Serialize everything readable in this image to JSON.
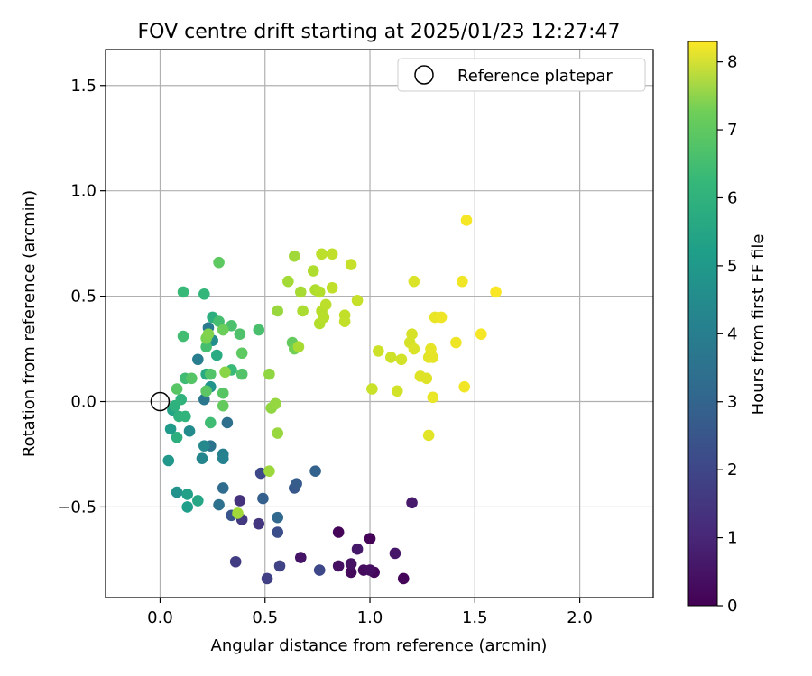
{
  "chart_data": {
    "type": "scatter",
    "title": "FOV centre drift starting at 2025/01/23 12:27:47",
    "xlabel": "Angular distance from reference (arcmin)",
    "ylabel": "Rotation from reference (arcmin)",
    "xlim": [
      -0.26,
      2.35
    ],
    "ylim": [
      -0.93,
      1.67
    ],
    "xticks": [
      0.0,
      0.5,
      1.0,
      1.5,
      2.0
    ],
    "xtick_labels": [
      "0.0",
      "0.5",
      "1.0",
      "1.5",
      "2.0"
    ],
    "yticks": [
      -0.5,
      0.0,
      0.5,
      1.0,
      1.5
    ],
    "ytick_labels": [
      "−0.5",
      "0.0",
      "0.5",
      "1.0",
      "1.5"
    ],
    "grid": true,
    "legend": {
      "position": "top-right",
      "entries": [
        "Reference platepar"
      ]
    },
    "reference_point": {
      "x": 0.0,
      "y": 0.0
    },
    "colorbar": {
      "label": "Hours from first FF file",
      "range": [
        0,
        8.3
      ],
      "ticks": [
        0,
        1,
        2,
        3,
        4,
        5,
        6,
        7,
        8
      ],
      "tick_labels": [
        "0",
        "1",
        "2",
        "3",
        "4",
        "5",
        "6",
        "7",
        "8"
      ],
      "colormap": "viridis"
    },
    "points": [
      {
        "x": 1.0,
        "y": -0.65,
        "c": 0.05
      },
      {
        "x": 0.85,
        "y": -0.62,
        "c": 0.1
      },
      {
        "x": 1.16,
        "y": -0.84,
        "c": 0.1
      },
      {
        "x": 1.02,
        "y": -0.81,
        "c": 0.15
      },
      {
        "x": 0.91,
        "y": -0.81,
        "c": 0.2
      },
      {
        "x": 0.97,
        "y": -0.8,
        "c": 0.25
      },
      {
        "x": 1.0,
        "y": -0.8,
        "c": 0.3
      },
      {
        "x": 0.85,
        "y": -0.78,
        "c": 0.35
      },
      {
        "x": 0.91,
        "y": -0.77,
        "c": 0.4
      },
      {
        "x": 0.67,
        "y": -0.74,
        "c": 0.45
      },
      {
        "x": 1.12,
        "y": -0.72,
        "c": 0.5
      },
      {
        "x": 0.94,
        "y": -0.7,
        "c": 0.55
      },
      {
        "x": 1.2,
        "y": -0.48,
        "c": 0.6
      },
      {
        "x": 0.38,
        "y": -0.47,
        "c": 1.2
      },
      {
        "x": 0.47,
        "y": -0.58,
        "c": 1.3
      },
      {
        "x": 0.39,
        "y": -0.56,
        "c": 1.4
      },
      {
        "x": 0.36,
        "y": -0.76,
        "c": 1.5
      },
      {
        "x": 0.51,
        "y": -0.84,
        "c": 1.6
      },
      {
        "x": 0.57,
        "y": -0.78,
        "c": 1.7
      },
      {
        "x": 0.48,
        "y": -0.34,
        "c": 1.8
      },
      {
        "x": 0.76,
        "y": -0.8,
        "c": 1.8
      },
      {
        "x": 0.56,
        "y": -0.62,
        "c": 2.0
      },
      {
        "x": 0.34,
        "y": -0.54,
        "c": 2.2
      },
      {
        "x": 0.64,
        "y": -0.41,
        "c": 2.3
      },
      {
        "x": 0.65,
        "y": -0.39,
        "c": 2.4
      },
      {
        "x": 0.49,
        "y": -0.46,
        "c": 2.5
      },
      {
        "x": 0.74,
        "y": -0.33,
        "c": 2.6
      },
      {
        "x": 0.56,
        "y": -0.55,
        "c": 2.8
      },
      {
        "x": 0.3,
        "y": -0.41,
        "c": 2.9
      },
      {
        "x": 0.32,
        "y": -0.1,
        "c": 3.0
      },
      {
        "x": 0.28,
        "y": -0.49,
        "c": 3.1
      },
      {
        "x": 0.24,
        "y": -0.21,
        "c": 3.2
      },
      {
        "x": 0.21,
        "y": 0.01,
        "c": 3.3
      },
      {
        "x": 0.23,
        "y": 0.35,
        "c": 3.4
      },
      {
        "x": 0.18,
        "y": 0.2,
        "c": 3.5
      },
      {
        "x": 0.3,
        "y": -0.25,
        "c": 3.6
      },
      {
        "x": 0.3,
        "y": -0.27,
        "c": 3.7
      },
      {
        "x": 0.2,
        "y": -0.27,
        "c": 3.8
      },
      {
        "x": 0.21,
        "y": -0.21,
        "c": 3.9
      },
      {
        "x": 0.14,
        "y": -0.14,
        "c": 4.0
      },
      {
        "x": 0.25,
        "y": 0.29,
        "c": 4.1
      },
      {
        "x": 0.08,
        "y": -0.43,
        "c": 4.2
      },
      {
        "x": 0.24,
        "y": 0.07,
        "c": 4.3
      },
      {
        "x": 0.04,
        "y": -0.28,
        "c": 4.4
      },
      {
        "x": 0.05,
        "y": -0.13,
        "c": 4.5
      },
      {
        "x": 0.13,
        "y": -0.5,
        "c": 4.6
      },
      {
        "x": 0.13,
        "y": -0.44,
        "c": 4.7
      },
      {
        "x": 0.06,
        "y": -0.04,
        "c": 4.8
      },
      {
        "x": 0.18,
        "y": -0.47,
        "c": 4.9
      },
      {
        "x": 0.22,
        "y": 0.13,
        "c": 5.0
      },
      {
        "x": 0.27,
        "y": 0.22,
        "c": 5.1
      },
      {
        "x": 0.25,
        "y": 0.4,
        "c": 5.2
      },
      {
        "x": 0.08,
        "y": -0.17,
        "c": 5.2
      },
      {
        "x": 0.09,
        "y": -0.07,
        "c": 5.3
      },
      {
        "x": 0.07,
        "y": -0.02,
        "c": 5.3
      },
      {
        "x": 0.1,
        "y": 0.01,
        "c": 5.35
      },
      {
        "x": 0.12,
        "y": -0.07,
        "c": 5.4
      },
      {
        "x": 0.21,
        "y": 0.51,
        "c": 5.5
      },
      {
        "x": 0.11,
        "y": 0.52,
        "c": 5.6
      },
      {
        "x": 0.34,
        "y": 0.15,
        "c": 5.6
      },
      {
        "x": 0.24,
        "y": -0.1,
        "c": 5.7
      },
      {
        "x": 0.12,
        "y": 0.11,
        "c": 5.7
      },
      {
        "x": 0.11,
        "y": 0.31,
        "c": 5.75
      },
      {
        "x": 0.22,
        "y": 0.26,
        "c": 5.8
      },
      {
        "x": 0.28,
        "y": 0.38,
        "c": 5.8
      },
      {
        "x": 0.47,
        "y": 0.34,
        "c": 5.85
      },
      {
        "x": 0.34,
        "y": 0.36,
        "c": 5.9
      },
      {
        "x": 0.38,
        "y": 0.32,
        "c": 5.95
      },
      {
        "x": 0.39,
        "y": 0.13,
        "c": 6.0
      },
      {
        "x": 0.24,
        "y": 0.13,
        "c": 6.0
      },
      {
        "x": 0.15,
        "y": 0.11,
        "c": 6.05
      },
      {
        "x": 0.08,
        "y": 0.06,
        "c": 6.1
      },
      {
        "x": 0.3,
        "y": 0.04,
        "c": 6.1
      },
      {
        "x": 0.22,
        "y": 0.05,
        "c": 6.15
      },
      {
        "x": 0.39,
        "y": 0.23,
        "c": 6.2
      },
      {
        "x": 0.28,
        "y": 0.66,
        "c": 6.2
      },
      {
        "x": 0.3,
        "y": -0.02,
        "c": 6.3
      },
      {
        "x": 0.63,
        "y": 0.28,
        "c": 6.3
      },
      {
        "x": 0.3,
        "y": 0.34,
        "c": 6.4
      },
      {
        "x": 0.64,
        "y": 0.25,
        "c": 6.5
      },
      {
        "x": 0.22,
        "y": 0.3,
        "c": 6.6
      },
      {
        "x": 0.23,
        "y": 0.32,
        "c": 6.7
      },
      {
        "x": 0.31,
        "y": 0.14,
        "c": 6.8
      },
      {
        "x": 0.52,
        "y": 0.13,
        "c": 6.9
      },
      {
        "x": 0.53,
        "y": -0.03,
        "c": 6.9
      },
      {
        "x": 0.55,
        "y": -0.01,
        "c": 6.95
      },
      {
        "x": 0.56,
        "y": 0.43,
        "c": 7.0
      },
      {
        "x": 0.56,
        "y": -0.15,
        "c": 7.0
      },
      {
        "x": 0.52,
        "y": -0.33,
        "c": 7.05
      },
      {
        "x": 0.37,
        "y": -0.53,
        "c": 7.1
      },
      {
        "x": 0.64,
        "y": 0.69,
        "c": 7.1
      },
      {
        "x": 0.61,
        "y": 0.57,
        "c": 7.15
      },
      {
        "x": 0.67,
        "y": 0.52,
        "c": 7.2
      },
      {
        "x": 0.66,
        "y": 0.26,
        "c": 7.2
      },
      {
        "x": 0.68,
        "y": 0.43,
        "c": 7.25
      },
      {
        "x": 0.73,
        "y": 0.62,
        "c": 7.3
      },
      {
        "x": 0.74,
        "y": 0.53,
        "c": 7.3
      },
      {
        "x": 0.76,
        "y": 0.52,
        "c": 7.35
      },
      {
        "x": 0.76,
        "y": 0.37,
        "c": 7.35
      },
      {
        "x": 0.77,
        "y": 0.43,
        "c": 7.4
      },
      {
        "x": 0.78,
        "y": 0.4,
        "c": 7.4
      },
      {
        "x": 0.77,
        "y": 0.7,
        "c": 7.45
      },
      {
        "x": 0.79,
        "y": 0.46,
        "c": 7.45
      },
      {
        "x": 0.82,
        "y": 0.7,
        "c": 7.5
      },
      {
        "x": 0.82,
        "y": 0.54,
        "c": 7.5
      },
      {
        "x": 0.88,
        "y": 0.41,
        "c": 7.55
      },
      {
        "x": 0.88,
        "y": 0.38,
        "c": 7.55
      },
      {
        "x": 0.91,
        "y": 0.65,
        "c": 7.6
      },
      {
        "x": 0.94,
        "y": 0.48,
        "c": 7.6
      },
      {
        "x": 1.01,
        "y": 0.06,
        "c": 7.65
      },
      {
        "x": 1.04,
        "y": 0.24,
        "c": 7.7
      },
      {
        "x": 1.1,
        "y": 0.21,
        "c": 7.7
      },
      {
        "x": 1.13,
        "y": 0.05,
        "c": 7.75
      },
      {
        "x": 1.15,
        "y": 0.2,
        "c": 7.75
      },
      {
        "x": 1.19,
        "y": 0.28,
        "c": 7.8
      },
      {
        "x": 1.2,
        "y": 0.32,
        "c": 7.8
      },
      {
        "x": 1.21,
        "y": 0.57,
        "c": 7.85
      },
      {
        "x": 1.21,
        "y": 0.25,
        "c": 7.85
      },
      {
        "x": 1.24,
        "y": 0.12,
        "c": 7.9
      },
      {
        "x": 1.27,
        "y": 0.11,
        "c": 7.9
      },
      {
        "x": 1.28,
        "y": -0.16,
        "c": 7.95
      },
      {
        "x": 1.28,
        "y": 0.21,
        "c": 7.95
      },
      {
        "x": 1.29,
        "y": 0.25,
        "c": 8.0
      },
      {
        "x": 1.3,
        "y": 0.21,
        "c": 8.0
      },
      {
        "x": 1.3,
        "y": 0.02,
        "c": 8.05
      },
      {
        "x": 1.31,
        "y": 0.4,
        "c": 8.05
      },
      {
        "x": 1.34,
        "y": 0.4,
        "c": 8.1
      },
      {
        "x": 1.41,
        "y": 0.28,
        "c": 8.1
      },
      {
        "x": 1.44,
        "y": 0.57,
        "c": 8.15
      },
      {
        "x": 1.45,
        "y": 0.07,
        "c": 8.15
      },
      {
        "x": 1.46,
        "y": 0.86,
        "c": 8.2
      },
      {
        "x": 1.53,
        "y": 0.32,
        "c": 8.2
      },
      {
        "x": 1.6,
        "y": 0.52,
        "c": 8.25
      }
    ]
  }
}
